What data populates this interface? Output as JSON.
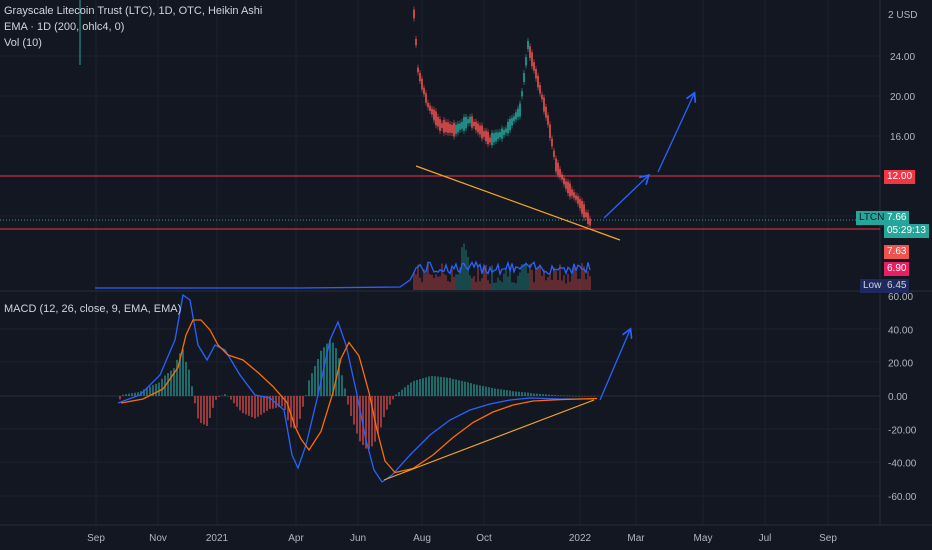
{
  "legend": {
    "title": "Grayscale Litecoin Trust (LTC), 1D, OTC, Heikin Ashi",
    "ema": "EMA · 1D (200, ohlc4, 0)",
    "vol": "Vol (10)",
    "macd": "MACD (12, 26, close, 9, EMA, EMA)"
  },
  "price_axis": {
    "currency": "USD",
    "top_tick": "2",
    "ticks": [
      "24.00",
      "20.00",
      "16.00",
      "12.00"
    ]
  },
  "macd_axis": {
    "ticks": [
      "60.00",
      "40.00",
      "20.00",
      "0.00",
      "-20.00",
      "-40.00",
      "-60.00"
    ]
  },
  "time_axis": {
    "ticks": [
      "Sep",
      "Nov",
      "2021",
      "Apr",
      "Jun",
      "Aug",
      "Oct",
      "2022",
      "Mar",
      "May",
      "Jul",
      "Sep"
    ]
  },
  "price_tags": {
    "level_12": "12.00",
    "symbol": "LTCN",
    "last_price": "7.66",
    "countdown": "05:29:13",
    "tag_red": "7.63",
    "tag_pink": "6.90",
    "low_label": "Low",
    "low_value": "6.45"
  },
  "colors": {
    "background": "#131722",
    "up": "#26a69a",
    "down": "#ef5350",
    "macd_line": "#2962ff",
    "signal_line": "#ff6d00",
    "trendline": "#f5a623",
    "level_line": "#f23645",
    "arrow": "#2962ff"
  },
  "chart_data": {
    "type": "candlestick",
    "symbol": "LTCN",
    "interval": "1D",
    "price_levels": [
      12.0
    ],
    "price_tick_values": [
      24,
      20,
      16,
      12
    ],
    "macd_tick_values": [
      60,
      40,
      20,
      0,
      -20,
      -40,
      -60
    ],
    "price_series": [
      {
        "t": "Jul",
        "v": 24.0
      },
      {
        "t": "Aug",
        "v": 15.5
      },
      {
        "t": "Sep",
        "v": 14.5
      },
      {
        "t": "Oct",
        "v": 15.0
      },
      {
        "t": "Nov",
        "v": 24.0
      },
      {
        "t": "Dec",
        "v": 12.0
      },
      {
        "t": "2022",
        "v": 7.66
      }
    ],
    "macd_series": [
      {
        "t": "Sep",
        "macd": -5,
        "signal": -3
      },
      {
        "t": "Nov",
        "macd": 20,
        "signal": 18
      },
      {
        "t": "Dec",
        "macd": 45,
        "signal": 40
      },
      {
        "t": "2021",
        "macd": 30,
        "signal": 32
      },
      {
        "t": "Feb",
        "macd": 10,
        "signal": 5
      },
      {
        "t": "Apr",
        "macd": -35,
        "signal": -25
      },
      {
        "t": "Jun",
        "macd": 45,
        "signal": 35
      },
      {
        "t": "Jul",
        "macd": -50,
        "signal": -45
      },
      {
        "t": "Aug",
        "macd": -40,
        "signal": -40
      },
      {
        "t": "Oct",
        "macd": -10,
        "signal": -12
      },
      {
        "t": "Dec",
        "macd": 0,
        "signal": 0
      },
      {
        "t": "2022",
        "macd": -2,
        "signal": -2
      }
    ]
  }
}
